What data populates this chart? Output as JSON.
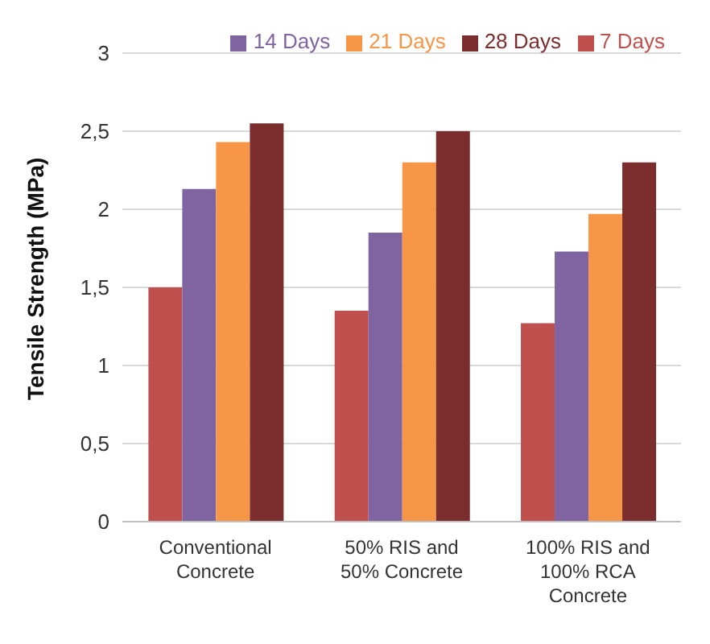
{
  "chart_data": {
    "type": "bar",
    "ylabel": "Tensile Strength (MPa)",
    "categories": [
      "Conventional Concrete",
      "50% RIS and 50% Concrete",
      "100% RIS and 100% RCA Concrete"
    ],
    "series": [
      {
        "name": "7 Days",
        "color": "#c0504d",
        "values": [
          1.5,
          1.35,
          1.27
        ]
      },
      {
        "name": "14 Days",
        "color": "#8064a2",
        "values": [
          2.13,
          1.85,
          1.73
        ]
      },
      {
        "name": "21 Days",
        "color": "#f79646",
        "values": [
          2.43,
          2.3,
          1.97
        ]
      },
      {
        "name": "28 Days",
        "color": "#7b2c2c",
        "values": [
          2.55,
          2.5,
          2.3
        ]
      }
    ],
    "ylim": [
      0,
      3
    ],
    "yticks": [
      0,
      {
        "value": 0.5,
        "label": "0,5"
      },
      1,
      {
        "value": 1.5,
        "label": "1,5"
      },
      2,
      {
        "value": 2.5,
        "label": "2,5"
      },
      3
    ],
    "grid": "y",
    "legend": "top right"
  }
}
